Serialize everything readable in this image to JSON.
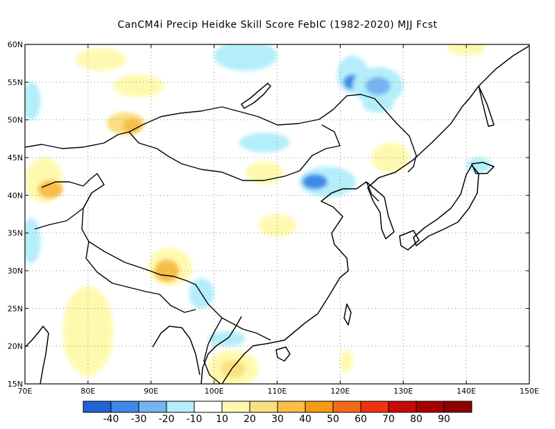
{
  "title": "CanCM4i Precip Heidke Skill Score FebIC (1982-2020) MJJ Fcst",
  "chart_data": {
    "type": "heatmap",
    "title": "CanCM4i Precip Heidke Skill Score FebIC (1982-2020) MJJ Fcst",
    "xlim": [
      70,
      150
    ],
    "ylim": [
      15,
      60
    ],
    "x_ticks": [
      {
        "value": 70,
        "label": "70E"
      },
      {
        "value": 80,
        "label": "80E"
      },
      {
        "value": 90,
        "label": "90E"
      },
      {
        "value": 100,
        "label": "100E"
      },
      {
        "value": 110,
        "label": "110E"
      },
      {
        "value": 120,
        "label": "120E"
      },
      {
        "value": 130,
        "label": "130E"
      },
      {
        "value": 140,
        "label": "140E"
      },
      {
        "value": 150,
        "label": "150E"
      }
    ],
    "y_ticks": [
      {
        "value": 15,
        "label": "15N"
      },
      {
        "value": 20,
        "label": "20N"
      },
      {
        "value": 25,
        "label": "25N"
      },
      {
        "value": 30,
        "label": "30N"
      },
      {
        "value": 35,
        "label": "35N"
      },
      {
        "value": 40,
        "label": "40N"
      },
      {
        "value": 45,
        "label": "45N"
      },
      {
        "value": 50,
        "label": "50N"
      },
      {
        "value": 55,
        "label": "55N"
      },
      {
        "value": 60,
        "label": "60N"
      }
    ],
    "grid": true,
    "colorbar": {
      "colors": [
        "#1e64d6",
        "#3c8ae6",
        "#74b4f0",
        "#b4eefa",
        "#ffffff",
        "#fff9b0",
        "#fae080",
        "#f9be48",
        "#f59b14",
        "#f56a1a",
        "#f0320f",
        "#c80a05",
        "#a50000",
        "#8c0000"
      ],
      "labels": [
        "-40",
        "-30",
        "-20",
        "-10",
        "10",
        "20",
        "30",
        "40",
        "50",
        "60",
        "70",
        "80",
        "90"
      ]
    },
    "regions": [
      {
        "lon": 88,
        "lat": 54.5,
        "rx": 4,
        "ry": 1.5,
        "value": 15
      },
      {
        "lon": 86,
        "lat": 49.5,
        "rx": 3,
        "ry": 1.5,
        "value": 25
      },
      {
        "lon": 87,
        "lat": 49.2,
        "rx": 1.5,
        "ry": 1,
        "value": 35
      },
      {
        "lon": 73,
        "lat": 42,
        "rx": 3,
        "ry": 3,
        "value": 15
      },
      {
        "lon": 74,
        "lat": 40.8,
        "rx": 2,
        "ry": 1.2,
        "value": 30
      },
      {
        "lon": 93,
        "lat": 30.5,
        "rx": 3.5,
        "ry": 2.5,
        "value": 15
      },
      {
        "lon": 92.5,
        "lat": 30,
        "rx": 2,
        "ry": 1.5,
        "value": 30
      },
      {
        "lon": 80,
        "lat": 22,
        "rx": 4,
        "ry": 6,
        "value": 15
      },
      {
        "lon": 103,
        "lat": 17,
        "rx": 4,
        "ry": 2.5,
        "value": 15
      },
      {
        "lon": 103,
        "lat": 17,
        "rx": 2,
        "ry": 1.2,
        "value": 25
      },
      {
        "lon": 108,
        "lat": 43,
        "rx": 3,
        "ry": 1.5,
        "value": 15
      },
      {
        "lon": 110,
        "lat": 36,
        "rx": 3,
        "ry": 1.5,
        "value": 15
      },
      {
        "lon": 128,
        "lat": 45,
        "rx": 3,
        "ry": 2,
        "value": 15
      },
      {
        "lon": 140,
        "lat": 59.5,
        "rx": 3,
        "ry": 1,
        "value": 15
      },
      {
        "lon": 82,
        "lat": 58,
        "rx": 4,
        "ry": 1.5,
        "value": 15
      },
      {
        "lon": 121,
        "lat": 18,
        "rx": 1,
        "ry": 1.5,
        "value": 15
      },
      {
        "lon": 118,
        "lat": 41.8,
        "rx": 4.5,
        "ry": 2,
        "value": -15
      },
      {
        "lon": 116,
        "lat": 41.8,
        "rx": 2,
        "ry": 1,
        "value": -35
      },
      {
        "lon": 122,
        "lat": 56,
        "rx": 2.5,
        "ry": 2.5,
        "value": -15
      },
      {
        "lon": 122,
        "lat": 55,
        "rx": 1.5,
        "ry": 1,
        "value": -35
      },
      {
        "lon": 126,
        "lat": 54.5,
        "rx": 4,
        "ry": 2.5,
        "value": -15
      },
      {
        "lon": 126,
        "lat": 54.5,
        "rx": 2,
        "ry": 1.2,
        "value": -25
      },
      {
        "lon": 71,
        "lat": 52.5,
        "rx": 1.5,
        "ry": 2.5,
        "value": -15
      },
      {
        "lon": 105,
        "lat": 58.5,
        "rx": 5,
        "ry": 2,
        "value": -15
      },
      {
        "lon": 102,
        "lat": 21,
        "rx": 3,
        "ry": 1,
        "value": -15
      },
      {
        "lon": 98,
        "lat": 27,
        "rx": 2,
        "ry": 2,
        "value": -15
      },
      {
        "lon": 108,
        "lat": 47,
        "rx": 4,
        "ry": 1.3,
        "value": -15
      },
      {
        "lon": 142,
        "lat": 44,
        "rx": 2,
        "ry": 1,
        "value": -15
      },
      {
        "lon": 71,
        "lat": 34,
        "rx": 1.5,
        "ry": 3,
        "value": -15
      },
      {
        "lon": 126,
        "lat": 52,
        "rx": 2.5,
        "ry": 1,
        "value": -15
      }
    ]
  }
}
